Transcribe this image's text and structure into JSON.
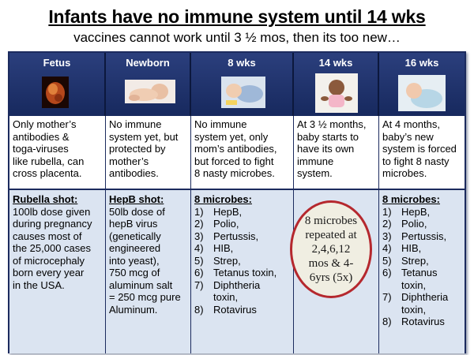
{
  "title": "Infants have no immune system until 14 wks",
  "subtitle": "vaccines cannot work until 3 ½ mos, then its too new…",
  "columns": [
    {
      "header": "Fetus",
      "description": [
        "Only mother’s",
        "antibodies &",
        "toga-viruses",
        "like rubella, can",
        "cross placenta."
      ],
      "shot_title": "Rubella shot:",
      "shot_text": [
        "100lb dose given",
        "during pregnancy",
        "causes most of",
        "the 25,000 cases",
        "of microcephaly",
        "born every year",
        "in the USA."
      ]
    },
    {
      "header": "Newborn",
      "description": [
        "No immune",
        "system yet, but",
        "protected by",
        "mother’s",
        "antibodies."
      ],
      "shot_title": "HepB shot:",
      "shot_text": [
        "50lb dose of",
        "hepB virus",
        "(genetically",
        "engineered",
        "into yeast),",
        "750 mcg of",
        "aluminum salt",
        "= 250 mcg pure",
        "Aluminum."
      ]
    },
    {
      "header": "8 wks",
      "description": [
        "No immune",
        "system yet, only",
        "mom’s antibodies,",
        "but forced to fight",
        "8 nasty microbes."
      ],
      "shot_title": "8 microbes:",
      "microbes": [
        "HepB,",
        "Polio,",
        "Pertussis,",
        "HIB,",
        "Strep,",
        "Tetanus toxin,",
        "Diphtheria toxin,",
        "Rotavirus"
      ]
    },
    {
      "header": "14 wks",
      "description": [
        "At 3 ½ months,",
        "baby starts to",
        "have its own",
        "immune",
        "system."
      ]
    },
    {
      "header": "16 wks",
      "description": [
        "At 4 months,",
        "baby’s new",
        "system is forced",
        "to fight 8 nasty",
        "microbes."
      ],
      "shot_title": "8 microbes:",
      "microbes": [
        "HepB,",
        "Polio,",
        "Pertussis,",
        "HIB,",
        "Strep,",
        "Tetanus toxin,",
        "Diphtheria toxin,",
        "Rotavirus"
      ]
    }
  ],
  "callout": [
    "8 microbes",
    "repeated at",
    "2,4,6,12",
    "mos & 4-",
    "6yrs (5x)"
  ],
  "colors": {
    "header_bg": "#1f3370",
    "lower_bg": "#dbe4f1",
    "circle_border": "#b5282e",
    "circle_fill": "#f0eee2"
  }
}
